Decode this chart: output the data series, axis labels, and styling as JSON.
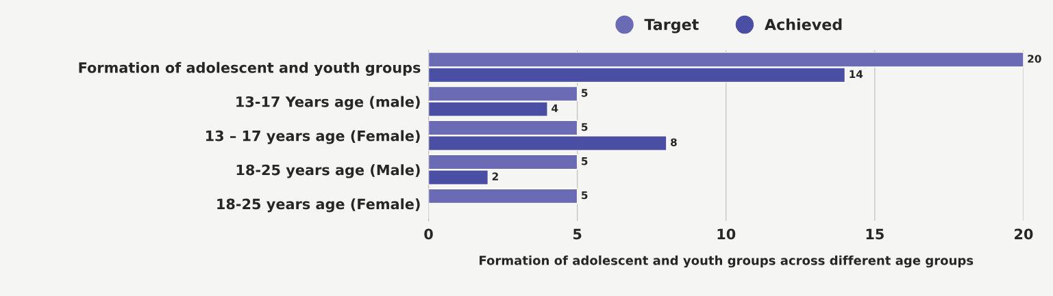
{
  "chart_data": {
    "type": "bar",
    "orientation": "horizontal",
    "xlabel": "Formation of adolescent and youth groups across different age groups",
    "categories": [
      "Formation of adolescent and youth groups",
      "13-17 Years age (male)",
      "13 – 17 years age (Female)",
      "18-25 years age (Male)",
      "18-25 years age (Female)"
    ],
    "series": [
      {
        "name": "Target",
        "color": "#6b6bb5",
        "values": [
          20,
          5,
          5,
          5,
          5
        ]
      },
      {
        "name": "Achieved",
        "color": "#4b4fa3",
        "values": [
          14,
          4,
          8,
          2,
          null
        ]
      }
    ],
    "xlim": [
      0,
      20
    ],
    "xticks": [
      0,
      5,
      10,
      15,
      20
    ],
    "grid": "x",
    "legend": "top",
    "data_labels": true
  }
}
